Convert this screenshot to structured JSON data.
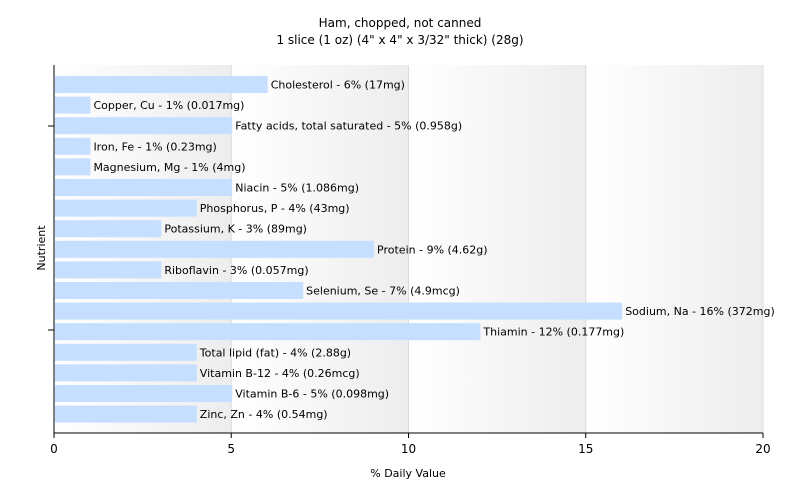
{
  "chart_data": {
    "type": "bar",
    "orientation": "horizontal",
    "title": "Ham, chopped, not canned",
    "subtitle": "1 slice (1 oz) (4\" x 4\" x 3/32\" thick) (28g)",
    "xlabel": "% Daily Value",
    "ylabel": "Nutrient",
    "xlim": [
      0,
      20
    ],
    "xticks": [
      0,
      5,
      10,
      15,
      20
    ],
    "grid": true,
    "bar_color": "#c6deff",
    "categories": [
      "Cholesterol",
      "Copper, Cu",
      "Fatty acids, total saturated",
      "Iron, Fe",
      "Magnesium, Mg",
      "Niacin",
      "Phosphorus, P",
      "Potassium, K",
      "Protein",
      "Riboflavin",
      "Selenium, Se",
      "Sodium, Na",
      "Thiamin",
      "Total lipid (fat)",
      "Vitamin B-12",
      "Vitamin B-6",
      "Zinc, Zn"
    ],
    "values": [
      6,
      1,
      5,
      1,
      1,
      5,
      4,
      3,
      9,
      3,
      7,
      16,
      12,
      4,
      4,
      5,
      4
    ],
    "data_labels": [
      "Cholesterol - 6% (17mg)",
      "Copper, Cu - 1% (0.017mg)",
      "Fatty acids, total saturated - 5% (0.958g)",
      "Iron, Fe - 1% (0.23mg)",
      "Magnesium, Mg - 1% (4mg)",
      "Niacin - 5% (1.086mg)",
      "Phosphorus, P - 4% (43mg)",
      "Potassium, K - 3% (89mg)",
      "Protein - 9% (4.62g)",
      "Riboflavin - 3% (0.057mg)",
      "Selenium, Se - 7% (4.9mcg)",
      "Sodium, Na - 16% (372mg)",
      "Thiamin - 12% (0.177mg)",
      "Total lipid (fat) - 4% (2.88g)",
      "Vitamin B-12 - 4% (0.26mcg)",
      "Vitamin B-6 - 5% (0.098mg)",
      "Zinc, Zn - 4% (0.54mg)"
    ]
  }
}
